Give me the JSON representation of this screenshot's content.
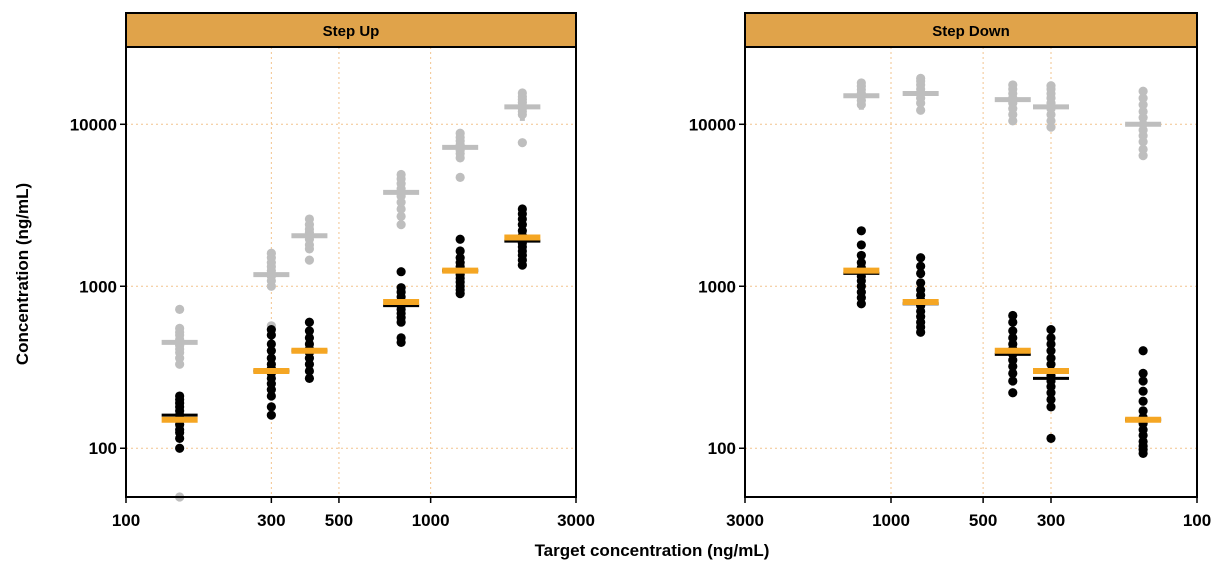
{
  "figure": {
    "ylabel": "Concentration (ng/mL)",
    "xlabel": "Target concentration (ng/mL)"
  },
  "chart_data": [
    {
      "type": "scatter",
      "panel": "Step Up",
      "x_scale": "log",
      "y_scale": "log",
      "xlim": [
        100,
        3000
      ],
      "ylim": [
        50,
        30000
      ],
      "x_ticks": [
        100,
        300,
        500,
        1000,
        3000
      ],
      "y_ticks": [
        100,
        1000,
        10000
      ],
      "grid": true,
      "colors": {
        "total": "#BEBEBE",
        "unbound": "#000000",
        "target_line": "#F5A623",
        "median_line": "#000000"
      },
      "groups": [
        {
          "x": 150,
          "target": 150,
          "unbound_median": 160,
          "total_median": 450,
          "unbound": [
            100,
            115,
            125,
            130,
            140,
            150,
            160,
            170,
            180,
            190,
            200,
            210
          ],
          "total": [
            50,
            330,
            360,
            390,
            410,
            430,
            450,
            470,
            500,
            520,
            550,
            720
          ]
        },
        {
          "x": 300,
          "target": 300,
          "unbound_median": 300,
          "total_median": 1180,
          "unbound": [
            160,
            180,
            210,
            230,
            250,
            270,
            290,
            310,
            330,
            360,
            400,
            440,
            500,
            540
          ],
          "total": [
            500,
            570,
            1000,
            1080,
            1150,
            1200,
            1250,
            1320,
            1400,
            1500,
            1600
          ]
        },
        {
          "x": 400,
          "target": 400,
          "unbound_median": 400,
          "total_median": 2050,
          "unbound": [
            270,
            300,
            330,
            360,
            390,
            410,
            440,
            480,
            530,
            600
          ],
          "total": [
            1450,
            1700,
            1800,
            1950,
            2050,
            2150,
            2250,
            2400,
            2600
          ]
        },
        {
          "x": 800,
          "target": 800,
          "unbound_median": 760,
          "total_median": 3800,
          "unbound": [
            450,
            480,
            600,
            640,
            680,
            720,
            760,
            800,
            860,
            920,
            980,
            1230
          ],
          "total": [
            2400,
            2700,
            3000,
            3300,
            3600,
            3800,
            4000,
            4300,
            4600,
            4900
          ]
        },
        {
          "x": 1250,
          "target": 1250,
          "unbound_median": 1250,
          "total_median": 7200,
          "unbound": [
            900,
            950,
            1000,
            1060,
            1120,
            1180,
            1250,
            1320,
            1400,
            1500,
            1650,
            1950
          ],
          "total": [
            4700,
            6200,
            6600,
            6900,
            7200,
            7500,
            7900,
            8300,
            8800
          ]
        },
        {
          "x": 2000,
          "target": 2000,
          "unbound_median": 1900,
          "total_median": 12800,
          "unbound": [
            1350,
            1450,
            1550,
            1650,
            1750,
            1850,
            1950,
            2050,
            2200,
            2400,
            2600,
            2800,
            3000
          ],
          "total": [
            7700,
            11500,
            12000,
            12500,
            13000,
            13600,
            14200,
            14800,
            15600
          ]
        }
      ]
    },
    {
      "type": "scatter",
      "panel": "Step Down",
      "x_scale": "log",
      "x_reversed": true,
      "y_scale": "log",
      "xlim": [
        3000,
        100
      ],
      "ylim": [
        50,
        30000
      ],
      "x_ticks": [
        3000,
        1000,
        500,
        300,
        100
      ],
      "y_ticks": [
        100,
        1000,
        10000
      ],
      "grid": true,
      "colors": {
        "total": "#BEBEBE",
        "unbound": "#000000",
        "target_line": "#F5A623",
        "median_line": "#000000"
      },
      "groups": [
        {
          "x": 1250,
          "target": 1250,
          "unbound_median": 1200,
          "total_median": 15000,
          "unbound": [
            780,
            850,
            920,
            1000,
            1080,
            1150,
            1220,
            1300,
            1400,
            1550,
            1800,
            2200
          ],
          "total": [
            13200,
            14000,
            14800,
            15600,
            16400,
            17200,
            18000
          ]
        },
        {
          "x": 800,
          "target": 800,
          "unbound_median": 780,
          "total_median": 15500,
          "unbound": [
            520,
            560,
            600,
            650,
            700,
            760,
            820,
            880,
            950,
            1050,
            1200,
            1330,
            1500
          ],
          "total": [
            12200,
            13500,
            14500,
            15500,
            16500,
            17500,
            18500,
            19200
          ]
        },
        {
          "x": 400,
          "target": 400,
          "unbound_median": 380,
          "total_median": 14200,
          "unbound": [
            220,
            260,
            290,
            320,
            350,
            380,
            410,
            440,
            480,
            530,
            600,
            660
          ],
          "total": [
            10500,
            11500,
            12500,
            13500,
            14500,
            15500,
            16500,
            17500
          ]
        },
        {
          "x": 300,
          "target": 300,
          "unbound_median": 270,
          "total_median": 12800,
          "unbound": [
            115,
            180,
            200,
            220,
            240,
            260,
            280,
            300,
            330,
            360,
            400,
            440,
            480,
            540
          ],
          "total": [
            9600,
            10500,
            11500,
            12500,
            13500,
            14500,
            15500,
            16500,
            17300
          ]
        },
        {
          "x": 150,
          "target": 150,
          "unbound_median": 150,
          "total_median": 10000,
          "unbound": [
            93,
            98,
            103,
            110,
            120,
            130,
            142,
            155,
            170,
            195,
            225,
            260,
            290,
            400
          ],
          "total": [
            6400,
            7000,
            7800,
            8500,
            9200,
            10000,
            11000,
            12000,
            13200,
            14500,
            16000
          ]
        }
      ]
    }
  ]
}
